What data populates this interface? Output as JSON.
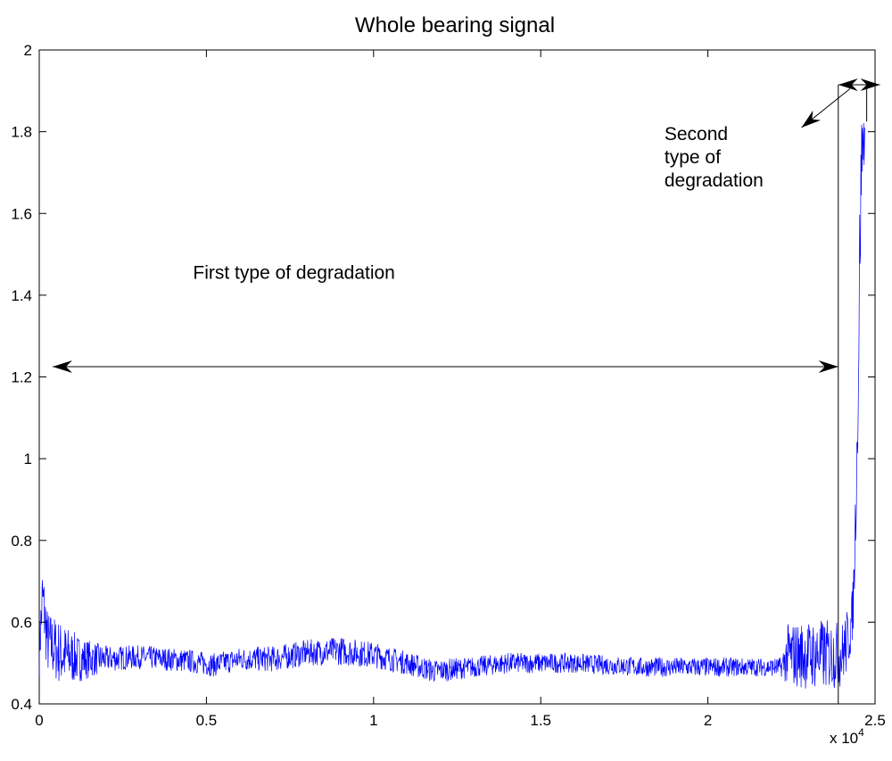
{
  "chart_data": {
    "type": "line",
    "title": "Whole bearing signal",
    "xlabel": "",
    "ylabel": "",
    "xlim": [
      0,
      25000
    ],
    "ylim": [
      0.4,
      2.0
    ],
    "x_ticks": [
      0,
      0.5,
      1,
      1.5,
      2,
      2.5
    ],
    "x_tick_labels": [
      "0",
      "0.5",
      "1",
      "1.5",
      "2",
      "2.5"
    ],
    "x_multiplier_label": "x 10",
    "x_multiplier_exponent": "4",
    "y_ticks": [
      0.4,
      0.6,
      0.8,
      1.0,
      1.2,
      1.4,
      1.6,
      1.8,
      2.0
    ],
    "y_tick_labels": [
      "0.4",
      "0.6",
      "0.8",
      "1",
      "1.2",
      "1.4",
      "1.6",
      "1.8",
      "2"
    ],
    "grid": false,
    "series": [
      {
        "color": "#0000ff",
        "envelope": [
          {
            "x": 0,
            "y": 0.53,
            "noise": 0.04
          },
          {
            "x": 100,
            "y": 0.66,
            "noise": 0.06
          },
          {
            "x": 250,
            "y": 0.55,
            "noise": 0.05
          },
          {
            "x": 700,
            "y": 0.52,
            "noise": 0.05
          },
          {
            "x": 1200,
            "y": 0.51,
            "noise": 0.035
          },
          {
            "x": 2000,
            "y": 0.51,
            "noise": 0.02
          },
          {
            "x": 3000,
            "y": 0.515,
            "noise": 0.018
          },
          {
            "x": 4500,
            "y": 0.505,
            "noise": 0.018
          },
          {
            "x": 5200,
            "y": 0.495,
            "noise": 0.018
          },
          {
            "x": 6000,
            "y": 0.51,
            "noise": 0.018
          },
          {
            "x": 7000,
            "y": 0.51,
            "noise": 0.02
          },
          {
            "x": 8000,
            "y": 0.525,
            "noise": 0.02
          },
          {
            "x": 9000,
            "y": 0.53,
            "noise": 0.022
          },
          {
            "x": 10000,
            "y": 0.52,
            "noise": 0.02
          },
          {
            "x": 11000,
            "y": 0.5,
            "noise": 0.018
          },
          {
            "x": 11800,
            "y": 0.48,
            "noise": 0.018
          },
          {
            "x": 13000,
            "y": 0.49,
            "noise": 0.016
          },
          {
            "x": 14000,
            "y": 0.5,
            "noise": 0.016
          },
          {
            "x": 16000,
            "y": 0.5,
            "noise": 0.015
          },
          {
            "x": 18000,
            "y": 0.49,
            "noise": 0.015
          },
          {
            "x": 20000,
            "y": 0.49,
            "noise": 0.015
          },
          {
            "x": 21500,
            "y": 0.49,
            "noise": 0.014
          },
          {
            "x": 22200,
            "y": 0.49,
            "noise": 0.015
          },
          {
            "x": 22400,
            "y": 0.52,
            "noise": 0.05
          },
          {
            "x": 23500,
            "y": 0.52,
            "noise": 0.055
          },
          {
            "x": 24000,
            "y": 0.52,
            "noise": 0.05
          },
          {
            "x": 24200,
            "y": 0.56,
            "noise": 0.05
          },
          {
            "x": 24300,
            "y": 0.6,
            "noise": 0.04
          },
          {
            "x": 24350,
            "y": 0.65,
            "noise": 0.05
          },
          {
            "x": 24400,
            "y": 0.8,
            "noise": 0.06
          },
          {
            "x": 24450,
            "y": 0.98,
            "noise": 0.05
          },
          {
            "x": 24500,
            "y": 1.2,
            "noise": 0.1
          },
          {
            "x": 24550,
            "y": 1.55,
            "noise": 0.1
          },
          {
            "x": 24600,
            "y": 1.75,
            "noise": 0.06
          },
          {
            "x": 24650,
            "y": 1.78,
            "noise": 0.05
          },
          {
            "x": 24700,
            "y": 1.8,
            "noise": 0.04
          }
        ]
      }
    ],
    "annotations": [
      {
        "id": "first",
        "text_lines": [
          "First type of degradation"
        ],
        "x": 4600,
        "y": 1.44
      },
      {
        "id": "second",
        "text_lines": [
          "Second",
          "type of",
          "degradation"
        ],
        "x": 18700,
        "y": 1.78
      }
    ],
    "arrows": [
      {
        "id": "first-range",
        "kind": "double",
        "x1": 400,
        "y1": 1.225,
        "x2": 23900,
        "y2": 1.225
      },
      {
        "id": "second-range",
        "kind": "double",
        "x1": 23900,
        "y1": 1.915,
        "x2": 25150,
        "y2": 1.915
      },
      {
        "id": "second-pointer",
        "kind": "single",
        "x1": 24250,
        "y1": 1.905,
        "x2": 22800,
        "y2": 1.81
      }
    ],
    "guide_lines": [
      {
        "x": 23900,
        "y1": 0.4,
        "y2": 1.915
      },
      {
        "x": 24750,
        "y1": 1.825,
        "y2": 1.915
      }
    ]
  }
}
